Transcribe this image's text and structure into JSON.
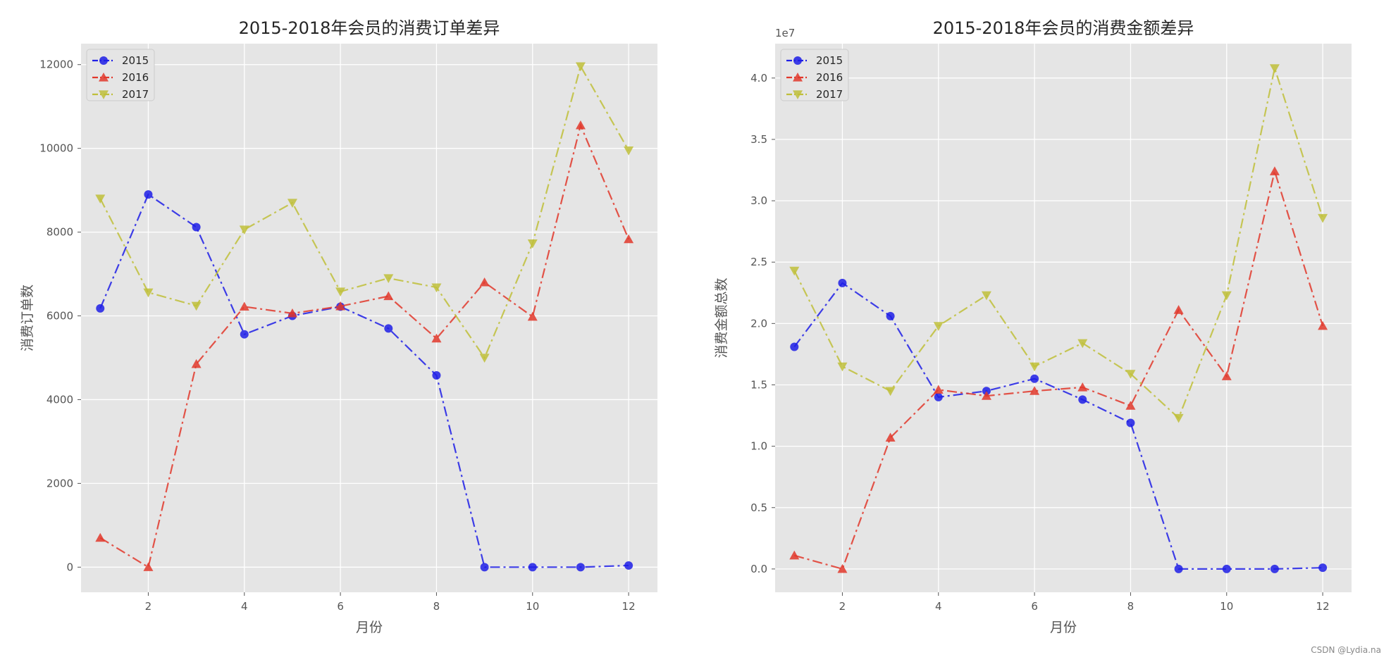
{
  "colors": {
    "2015": "#1f1fe6",
    "2016": "#e2382b",
    "2017": "#bfbf3a"
  },
  "watermark": "CSDN @Lydia.na",
  "chart_data": [
    {
      "type": "line",
      "title": "2015-2018年会员的消费订单差异",
      "xlabel": "月份",
      "ylabel": "消费订单数",
      "xlim": [
        0.6,
        12.6
      ],
      "ylim": [
        -600,
        12500
      ],
      "xticks": [
        2,
        4,
        6,
        8,
        10,
        12
      ],
      "yticks": [
        0,
        2000,
        4000,
        6000,
        8000,
        10000,
        12000
      ],
      "offset_label": "",
      "legend": "top-left",
      "grid": true,
      "x": [
        1,
        2,
        3,
        4,
        5,
        6,
        7,
        8,
        9,
        10,
        11,
        12
      ],
      "series": [
        {
          "name": "2015",
          "marker": "circle",
          "values": [
            6180,
            8900,
            8120,
            5560,
            6000,
            6220,
            5700,
            4580,
            0,
            0,
            0,
            40
          ]
        },
        {
          "name": "2016",
          "marker": "triangle-up",
          "values": [
            700,
            0,
            4850,
            6220,
            6060,
            6230,
            6470,
            5460,
            6800,
            5980,
            10550,
            7830
          ]
        },
        {
          "name": "2017",
          "marker": "triangle-down",
          "values": [
            8800,
            6560,
            6240,
            8060,
            8700,
            6580,
            6900,
            6680,
            5000,
            7730,
            11960,
            9950
          ]
        }
      ]
    },
    {
      "type": "line",
      "title": "2015-2018年会员的消费金额差异",
      "xlabel": "月份",
      "ylabel": "消费金额总数",
      "xlim": [
        0.6,
        12.6
      ],
      "ylim": [
        -1.9,
        42.8
      ],
      "xticks": [
        2,
        4,
        6,
        8,
        10,
        12
      ],
      "yticks": [
        0.0,
        0.5,
        1.0,
        1.5,
        2.0,
        2.5,
        3.0,
        3.5,
        4.0
      ],
      "ytick_scale": 10,
      "offset_label": "1e7",
      "legend": "top-left",
      "grid": true,
      "x": [
        1,
        2,
        3,
        4,
        5,
        6,
        7,
        8,
        9,
        10,
        11,
        12
      ],
      "series": [
        {
          "name": "2015",
          "marker": "circle",
          "values": [
            18.1,
            23.3,
            20.6,
            14.0,
            14.5,
            15.5,
            13.8,
            11.9,
            0,
            0,
            0,
            0.1
          ]
        },
        {
          "name": "2016",
          "marker": "triangle-up",
          "values": [
            1.1,
            0,
            10.7,
            14.6,
            14.1,
            14.5,
            14.8,
            13.3,
            21.1,
            15.7,
            32.4,
            19.8
          ]
        },
        {
          "name": "2017",
          "marker": "triangle-down",
          "values": [
            24.3,
            16.5,
            14.5,
            19.8,
            22.3,
            16.5,
            18.4,
            15.9,
            12.3,
            22.3,
            40.8,
            28.6
          ]
        }
      ]
    }
  ]
}
